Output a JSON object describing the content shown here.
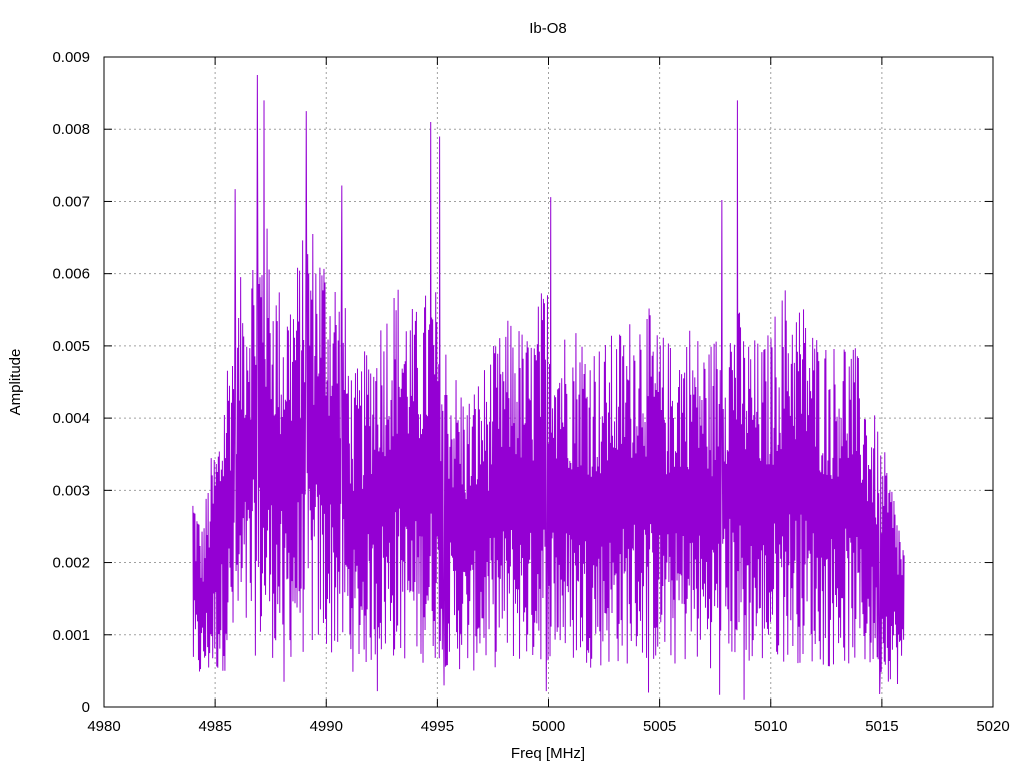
{
  "chart_data": {
    "type": "line",
    "title": "Ib-O8",
    "xlabel": "Freq [MHz]",
    "ylabel": "Amplitude",
    "xlim": [
      4980,
      5020
    ],
    "ylim": [
      0,
      0.009
    ],
    "xticks": [
      4980,
      4985,
      4990,
      4995,
      5000,
      5005,
      5010,
      5015,
      5020
    ],
    "yticks": [
      0,
      0.001,
      0.002,
      0.003,
      0.004,
      0.005,
      0.006,
      0.007,
      0.008,
      0.009
    ],
    "xtick_labels": [
      "4980",
      "4985",
      "4990",
      "4995",
      "5000",
      "5005",
      "5010",
      "5015",
      "5020"
    ],
    "ytick_labels": [
      "0",
      "0.001",
      "0.002",
      "0.003",
      "0.004",
      "0.005",
      "0.006",
      "0.007",
      "0.008",
      "0.009"
    ],
    "grid": true,
    "series_color": "#9400d3",
    "series": [
      {
        "x": [
          4984.0,
          4984.4,
          4984.8,
          4985.2,
          4985.6,
          4986.0,
          4986.4,
          4986.8,
          4987.2,
          4987.6,
          4988.0,
          4988.4,
          4988.8,
          4989.2,
          4989.6,
          4990.0,
          4990.4,
          4990.8,
          4991.2,
          4991.6,
          4992.0,
          4992.4,
          4992.8,
          4993.2,
          4993.6,
          4994.0,
          4994.4,
          4994.8,
          4995.2,
          4995.6,
          4996.0,
          4996.4,
          4996.8,
          4997.2,
          4997.6,
          4998.0,
          4998.4,
          4998.8,
          4999.2,
          4999.6,
          5000.0,
          5000.4,
          5000.8,
          5001.2,
          5001.6,
          5002.0,
          5002.4,
          5002.8,
          5003.2,
          5003.6,
          5004.0,
          5004.4,
          5004.8,
          5005.2,
          5005.6,
          5006.0,
          5006.4,
          5006.8,
          5007.2,
          5007.6,
          5008.0,
          5008.4,
          5008.8,
          5009.2,
          5009.6,
          5010.0,
          5010.4,
          5010.8,
          5011.2,
          5011.6,
          5012.0,
          5012.4,
          5012.8,
          5013.2,
          5013.6,
          5014.0,
          5014.4,
          5014.8,
          5015.2,
          5015.6,
          5016.0
        ],
        "y": [
          0.0028,
          0.0022,
          0.003,
          0.0035,
          0.0045,
          0.005,
          0.0055,
          0.0058,
          0.006,
          0.0055,
          0.005,
          0.0052,
          0.0055,
          0.006,
          0.0058,
          0.0056,
          0.0054,
          0.005,
          0.004,
          0.0042,
          0.0045,
          0.0048,
          0.005,
          0.0052,
          0.005,
          0.0048,
          0.005,
          0.0052,
          0.0048,
          0.0042,
          0.004,
          0.0038,
          0.004,
          0.0042,
          0.0044,
          0.0046,
          0.0048,
          0.0046,
          0.0045,
          0.005,
          0.0052,
          0.0048,
          0.0046,
          0.0047,
          0.0046,
          0.0045,
          0.0044,
          0.0045,
          0.0046,
          0.0047,
          0.005,
          0.0049,
          0.0046,
          0.0045,
          0.0044,
          0.0046,
          0.0047,
          0.0045,
          0.0044,
          0.0046,
          0.0048,
          0.005,
          0.0046,
          0.0045,
          0.0044,
          0.0046,
          0.005,
          0.0052,
          0.005,
          0.0049,
          0.0046,
          0.0045,
          0.0044,
          0.0046,
          0.0045,
          0.0042,
          0.0038,
          0.0034,
          0.003,
          0.0026,
          0.002
        ]
      }
    ],
    "peaks": [
      {
        "x": 4986.9,
        "y": 0.00875
      },
      {
        "x": 4987.2,
        "y": 0.0084
      },
      {
        "x": 4989.1,
        "y": 0.00825
      },
      {
        "x": 4994.7,
        "y": 0.0081
      },
      {
        "x": 4995.1,
        "y": 0.0079
      },
      {
        "x": 5008.5,
        "y": 0.0084
      },
      {
        "x": 4990.7,
        "y": 0.00722
      },
      {
        "x": 4985.9,
        "y": 0.00717
      },
      {
        "x": 5000.1,
        "y": 0.00706
      },
      {
        "x": 5007.8,
        "y": 0.00702
      }
    ],
    "troughs": [
      {
        "x": 4992.3,
        "y": 0.00022
      },
      {
        "x": 4995.3,
        "y": 0.0003
      },
      {
        "x": 4999.9,
        "y": 0.00022
      },
      {
        "x": 5004.5,
        "y": 0.0002
      },
      {
        "x": 5007.7,
        "y": 0.00017
      },
      {
        "x": 5008.8,
        "y": 0.0001
      },
      {
        "x": 5014.9,
        "y": 0.00018
      },
      {
        "x": 4988.1,
        "y": 0.00035
      }
    ]
  }
}
